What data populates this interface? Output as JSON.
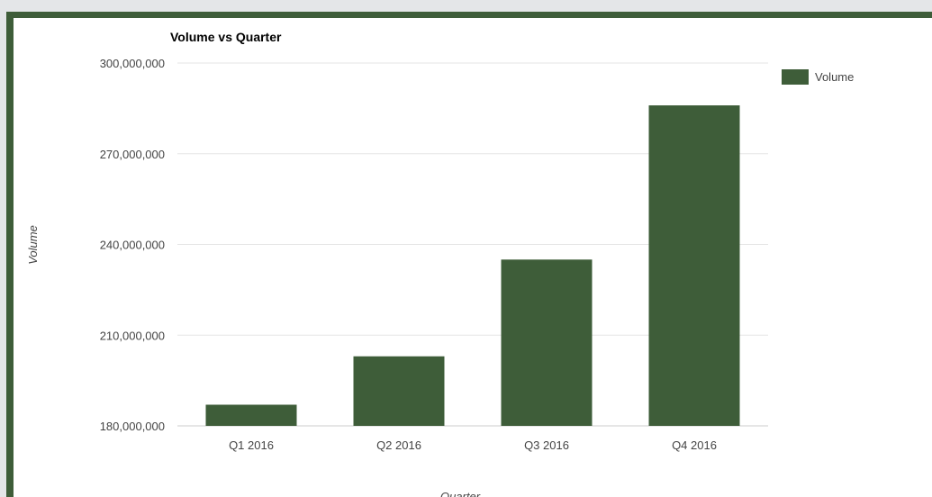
{
  "colors": {
    "background": "#e4e6e8",
    "frame": "#3e5d39",
    "bar": "#3e5d39",
    "gridline": "#e6e6e6",
    "baseline": "#cccccc"
  },
  "chart_data": {
    "type": "bar",
    "title": "Volume vs Quarter",
    "xlabel": "Quarter",
    "ylabel": "Volume",
    "categories": [
      "Q1 2016",
      "Q2 2016",
      "Q3 2016",
      "Q4 2016"
    ],
    "series": [
      {
        "name": "Volume",
        "color": "#3e5d39",
        "values": [
          187000000,
          203000000,
          235000000,
          286000000
        ]
      }
    ],
    "ylim": [
      180000000,
      300000000
    ],
    "y_ticks": [
      180000000,
      210000000,
      240000000,
      270000000,
      300000000
    ],
    "y_tick_labels": [
      "180,000,000",
      "210,000,000",
      "240,000,000",
      "270,000,000",
      "300,000,000"
    ],
    "grid": true,
    "legend": {
      "position": "right",
      "entries": [
        "Volume"
      ]
    }
  }
}
